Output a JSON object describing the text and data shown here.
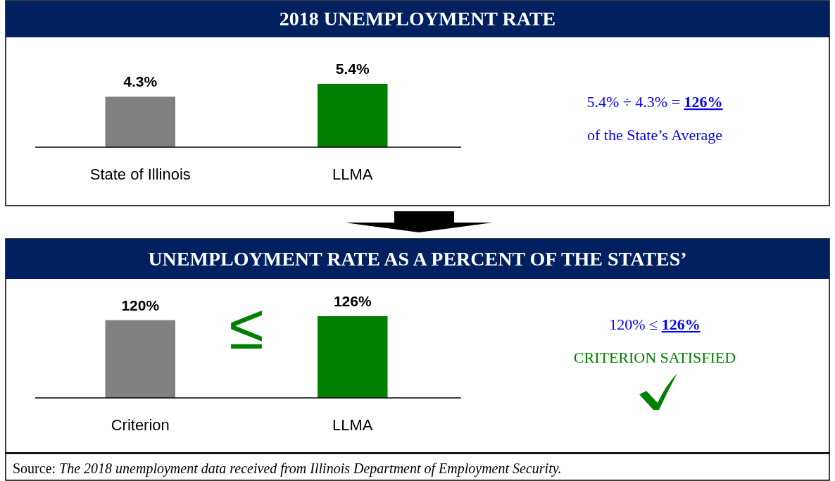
{
  "chart_data": [
    {
      "type": "bar",
      "title": "2018 UNEMPLOYMENT RATE",
      "categories": [
        "State of Illinois",
        "LLMA"
      ],
      "values": [
        4.3,
        5.4
      ],
      "colors": [
        "#808080",
        "#008000"
      ],
      "value_labels": [
        "4.3%",
        "5.4%"
      ],
      "annotations": [
        "5.4% ÷ 4.3% = 126%",
        "of the State’s Average"
      ]
    },
    {
      "type": "bar",
      "title": "UNEMPLOYMENT RATE AS A PERCENT OF THE STATES’",
      "categories": [
        "Criterion",
        "LLMA"
      ],
      "values": [
        120,
        126
      ],
      "colors": [
        "#808080",
        "#008000"
      ],
      "value_labels": [
        "120%",
        "126%"
      ],
      "annotations": [
        "≤",
        "120% ≤ 126%",
        "CRITERION SATISFIED",
        "Source: The 2018 unemployment data received from Illinois Department of Employment Security."
      ]
    }
  ]
}
